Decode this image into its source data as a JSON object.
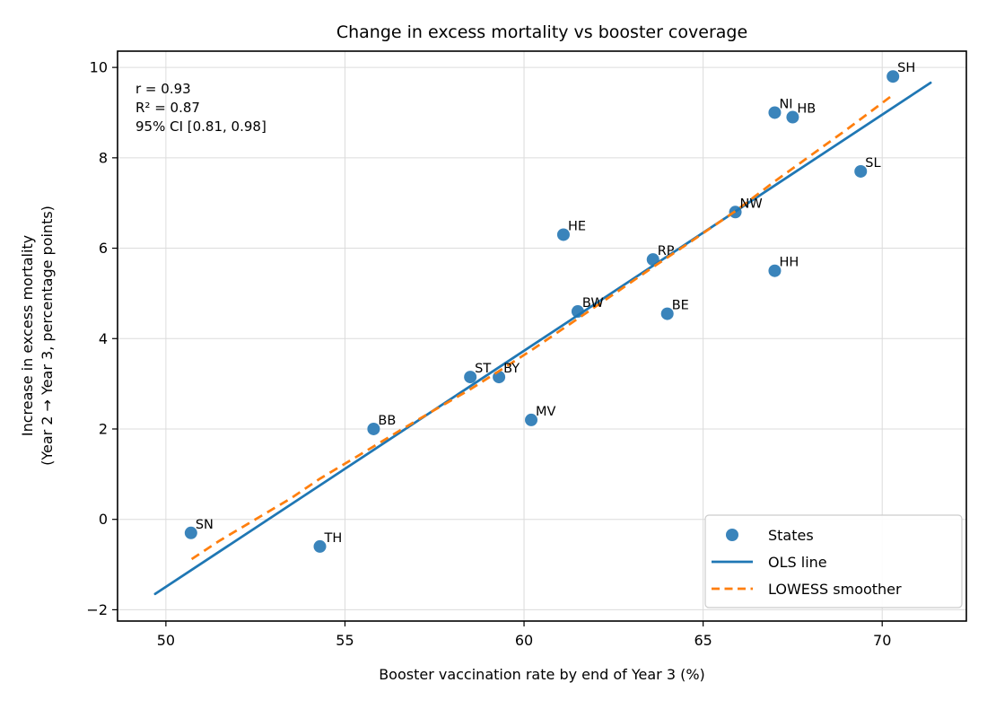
{
  "figure": {
    "title": "Change in excess mortality vs booster coverage"
  },
  "annotation": {
    "lines": [
      "r = 0.93",
      "R² = 0.87",
      "95% CI [0.81, 0.98]"
    ]
  },
  "legend": {
    "items": [
      {
        "label": "States",
        "marker": "dot"
      },
      {
        "label": "OLS line",
        "marker": "solid-line"
      },
      {
        "label": "LOWESS smoother",
        "marker": "dashed-line"
      }
    ]
  },
  "colors": {
    "points": "#3a84bb",
    "ols_line": "#1f77b4",
    "lowess_line": "#ff7f0e",
    "grid": "#dcdcdc",
    "axis": "#000000",
    "legend_border": "#cccccc"
  },
  "chart_data": {
    "type": "scatter",
    "title": "Change in excess mortality vs booster coverage",
    "xlabel": "Booster vaccination rate by end of Year 3 (%)",
    "ylabel_lines": [
      "Increase in excess mortality",
      "(Year 2 → Year 3, percentage points)"
    ],
    "xlim": [
      48.65,
      72.35
    ],
    "ylim": [
      -2.25,
      10.36
    ],
    "xticks": [
      50,
      55,
      60,
      65,
      70
    ],
    "yticks": [
      -2,
      0,
      2,
      4,
      6,
      8,
      10
    ],
    "grid": true,
    "legend_position": "lower right",
    "stats": {
      "r": 0.93,
      "r_squared": 0.87,
      "ci_95": [
        0.81,
        0.98
      ]
    },
    "points": [
      {
        "label": "SN",
        "x": 50.7,
        "y": -0.3
      },
      {
        "label": "TH",
        "x": 54.3,
        "y": -0.6
      },
      {
        "label": "BB",
        "x": 55.8,
        "y": 2.0
      },
      {
        "label": "ST",
        "x": 58.5,
        "y": 3.15
      },
      {
        "label": "BY",
        "x": 59.3,
        "y": 3.15
      },
      {
        "label": "MV",
        "x": 60.2,
        "y": 2.2
      },
      {
        "label": "HE",
        "x": 61.1,
        "y": 6.3
      },
      {
        "label": "BW",
        "x": 61.5,
        "y": 4.6
      },
      {
        "label": "RP",
        "x": 63.6,
        "y": 5.75
      },
      {
        "label": "BE",
        "x": 64.0,
        "y": 4.55
      },
      {
        "label": "NW",
        "x": 65.9,
        "y": 6.8
      },
      {
        "label": "HH",
        "x": 67.0,
        "y": 5.5
      },
      {
        "label": "NI",
        "x": 67.0,
        "y": 9.0
      },
      {
        "label": "HB",
        "x": 67.5,
        "y": 8.9
      },
      {
        "label": "SL",
        "x": 69.4,
        "y": 7.7
      },
      {
        "label": "SH",
        "x": 70.3,
        "y": 9.8
      }
    ],
    "ols_line": {
      "x": [
        49.7,
        71.35
      ],
      "y": [
        -1.65,
        9.66
      ]
    },
    "lowess": [
      [
        50.72,
        -0.88
      ],
      [
        51.5,
        -0.47
      ],
      [
        52.5,
        0.0
      ],
      [
        53.5,
        0.47
      ],
      [
        54.3,
        0.9
      ],
      [
        55.5,
        1.47
      ],
      [
        56.5,
        1.95
      ],
      [
        57.5,
        2.42
      ],
      [
        58.5,
        2.88
      ],
      [
        59.3,
        3.28
      ],
      [
        60.2,
        3.74
      ],
      [
        61.5,
        4.44
      ],
      [
        62.5,
        4.98
      ],
      [
        63.6,
        5.58
      ],
      [
        64.5,
        6.06
      ],
      [
        65.9,
        6.82
      ],
      [
        67.0,
        7.48
      ],
      [
        68.0,
        8.05
      ],
      [
        69.0,
        8.62
      ],
      [
        70.28,
        9.38
      ]
    ]
  }
}
